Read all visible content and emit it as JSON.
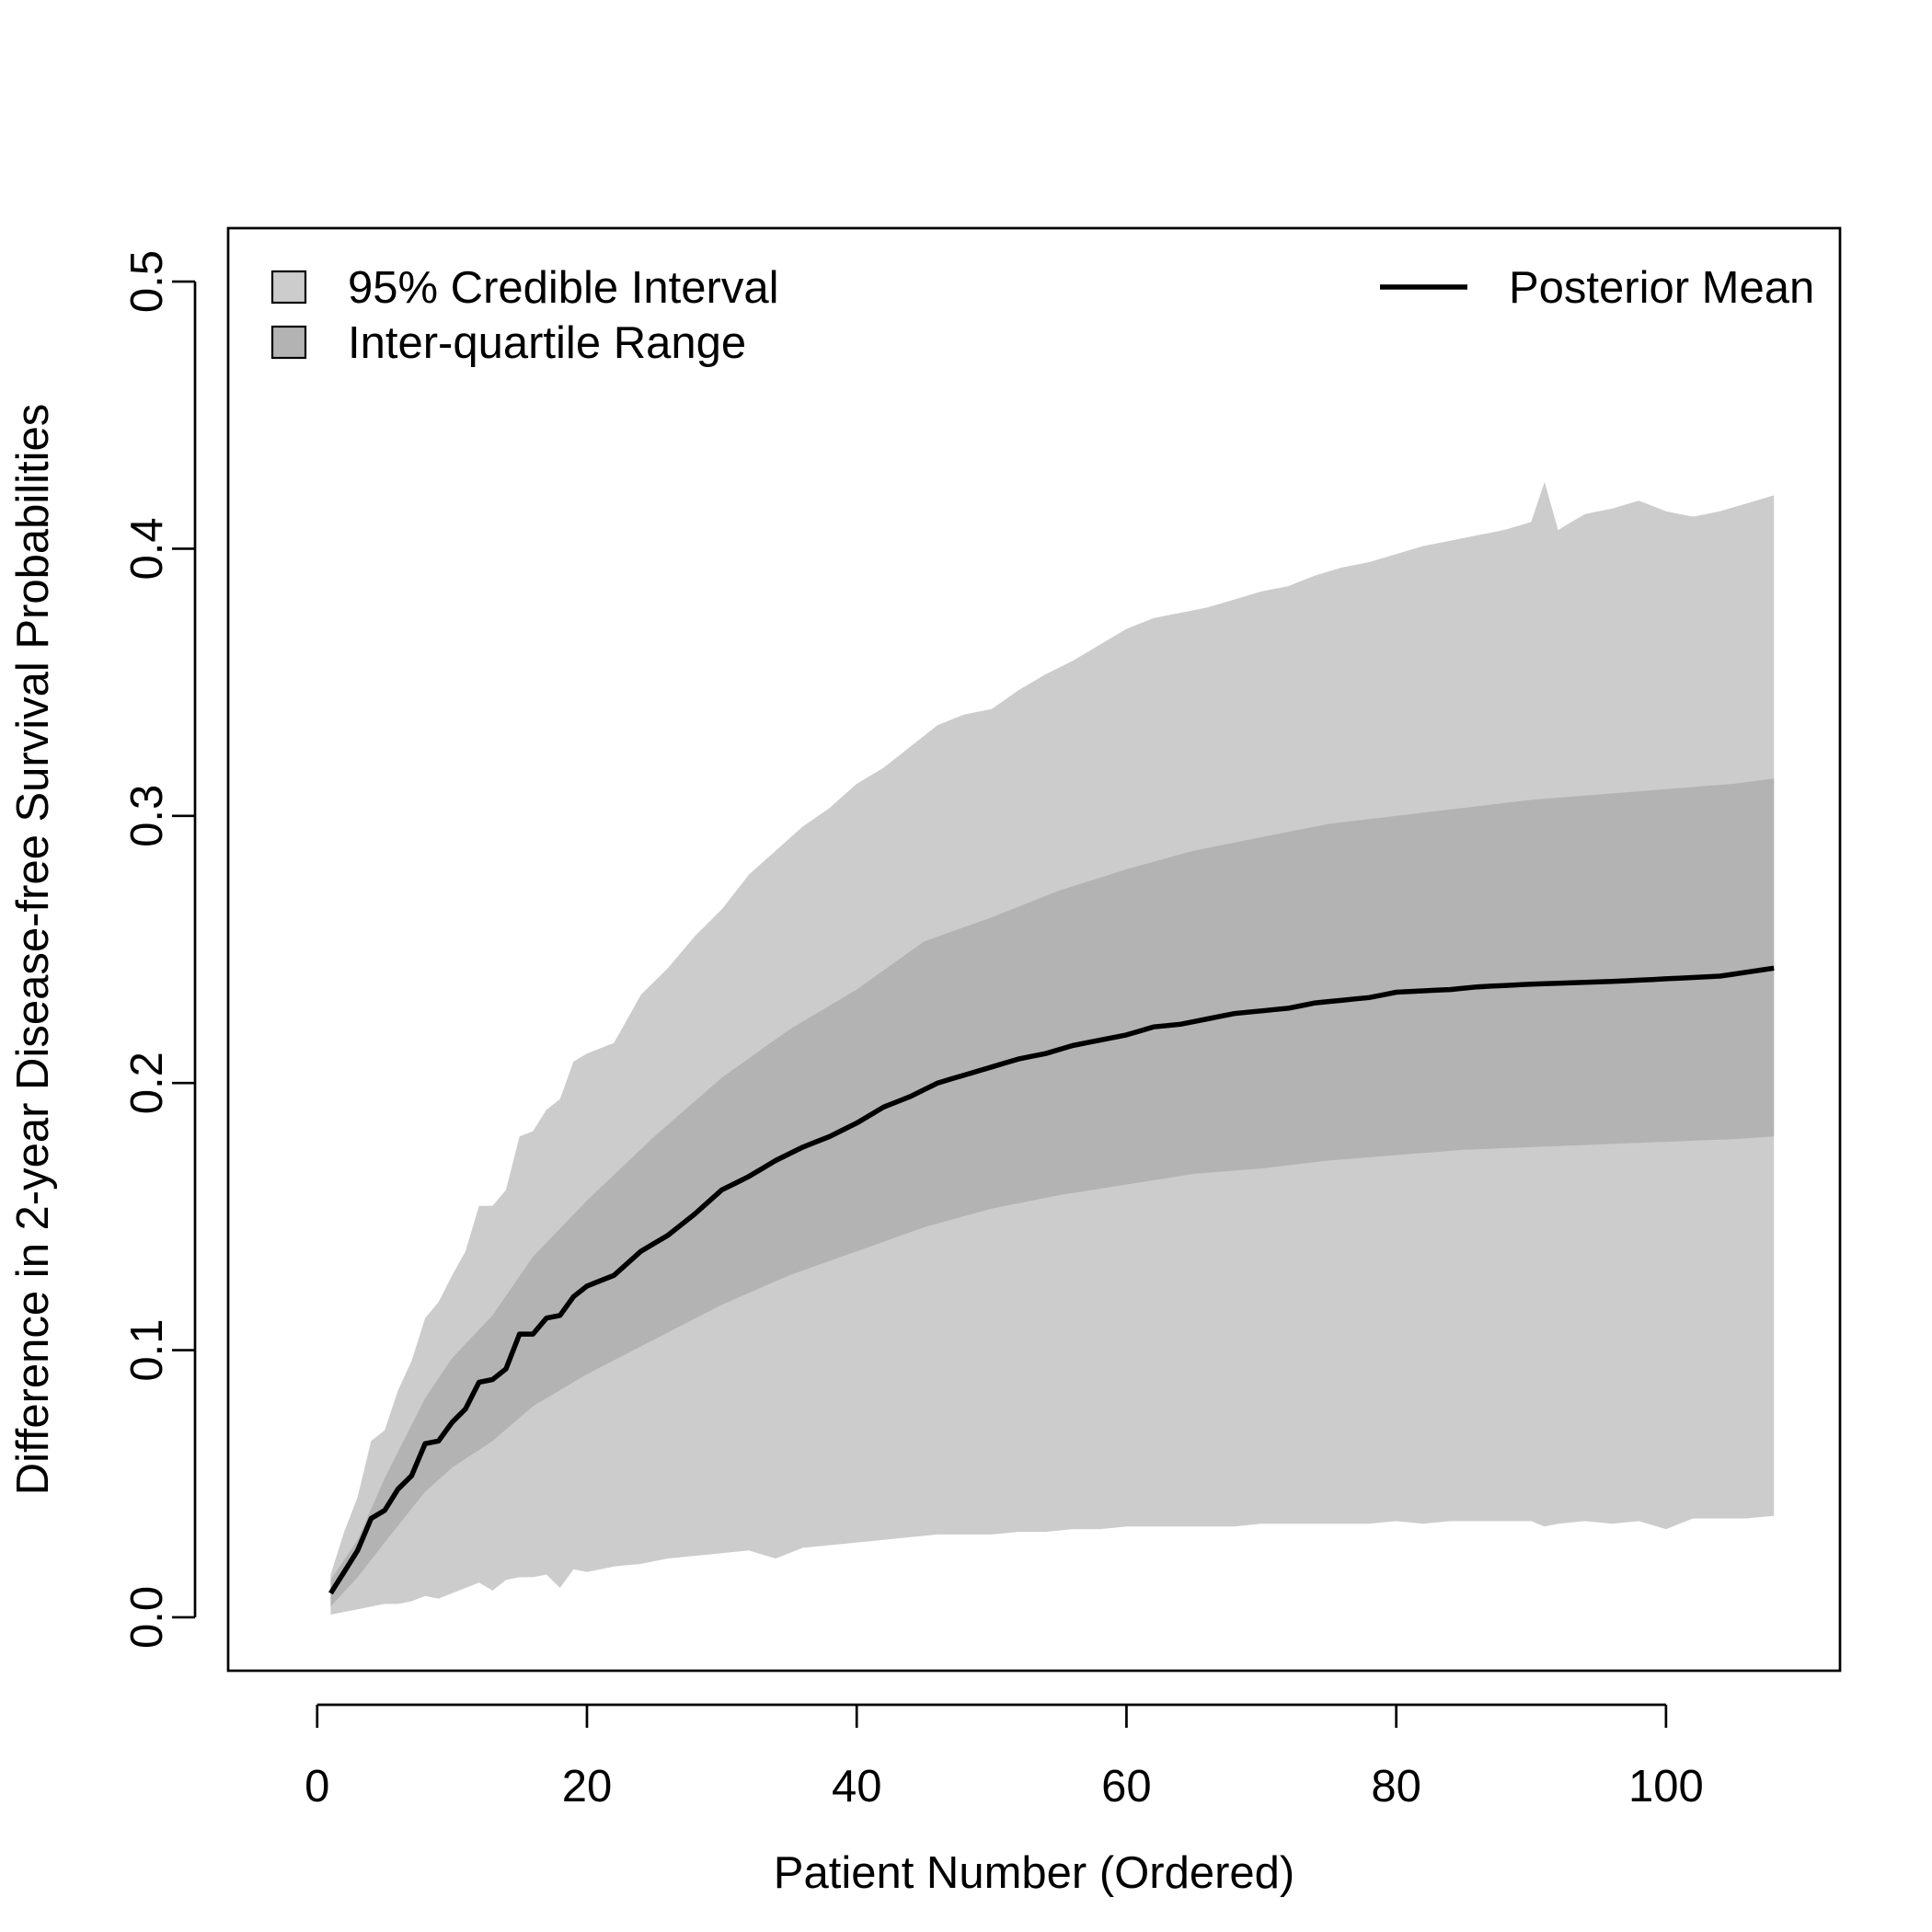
{
  "chart_data": {
    "type": "area",
    "title": "",
    "xlabel": "Patient Number (Ordered)",
    "ylabel": "Difference in 2-year Disease-free Survival Probabilities",
    "xlim": [
      -6.6,
      112.9
    ],
    "ylim": [
      -0.02,
      0.52
    ],
    "xticks": [
      0,
      20,
      40,
      60,
      80,
      100
    ],
    "xtick_labels": [
      "0",
      "20",
      "40",
      "60",
      "80",
      "100"
    ],
    "yticks": [
      0.0,
      0.1,
      0.2,
      0.3,
      0.4,
      0.5
    ],
    "ytick_labels": [
      "0.0",
      "0.1",
      "0.2",
      "0.3",
      "0.4",
      "0.5"
    ],
    "grid": false,
    "legend": {
      "placement": "top",
      "entries": [
        {
          "label": "95% Credible Interval",
          "kind": "fill",
          "color": "#cccccc"
        },
        {
          "label": "Inter-quartile Range",
          "kind": "fill",
          "color": "#b3b3b3"
        },
        {
          "label": "Posterior Mean",
          "kind": "line",
          "color": "#000000"
        }
      ]
    },
    "colors": {
      "ci95": "#cccccc",
      "iqr": "#b3b3b3",
      "mean": "#000000"
    },
    "x_range": [
      1,
      108
    ],
    "series": [
      {
        "name": "Posterior Mean",
        "anchors_x": [
          1,
          2,
          3,
          4,
          5,
          6,
          7,
          8,
          9,
          10,
          11,
          12,
          13,
          14,
          15,
          16,
          17,
          18,
          19,
          20,
          22,
          24,
          26,
          28,
          30,
          32,
          34,
          36,
          38,
          40,
          42,
          44,
          46,
          48,
          50,
          52,
          54,
          56,
          58,
          60,
          62,
          64,
          66,
          68,
          70,
          72,
          74,
          76,
          78,
          80,
          84,
          86,
          90,
          96,
          100,
          104,
          108
        ],
        "values": [
          0.009,
          0.017,
          0.025,
          0.037,
          0.04,
          0.048,
          0.053,
          0.065,
          0.066,
          0.073,
          0.078,
          0.088,
          0.089,
          0.093,
          0.106,
          0.106,
          0.112,
          0.113,
          0.12,
          0.124,
          0.128,
          0.137,
          0.143,
          0.151,
          0.16,
          0.165,
          0.171,
          0.176,
          0.18,
          0.185,
          0.191,
          0.195,
          0.2,
          0.203,
          0.206,
          0.209,
          0.211,
          0.214,
          0.216,
          0.218,
          0.221,
          0.222,
          0.224,
          0.226,
          0.227,
          0.228,
          0.23,
          0.231,
          0.232,
          0.234,
          0.235,
          0.236,
          0.237,
          0.238,
          0.239,
          0.24,
          0.243
        ]
      },
      {
        "name": "Inter-quartile Range",
        "anchors_x": [
          1,
          3,
          5,
          8,
          10,
          13,
          16,
          20,
          25,
          30,
          35,
          40,
          45,
          50,
          55,
          60,
          65,
          70,
          75,
          80,
          85,
          90,
          95,
          100,
          105,
          108
        ],
        "upper": [
          0.014,
          0.029,
          0.052,
          0.082,
          0.097,
          0.113,
          0.135,
          0.156,
          0.18,
          0.202,
          0.22,
          0.235,
          0.253,
          0.262,
          0.272,
          0.28,
          0.287,
          0.292,
          0.297,
          0.3,
          0.303,
          0.306,
          0.308,
          0.31,
          0.312,
          0.314
        ],
        "lower": [
          0.004,
          0.015,
          0.028,
          0.047,
          0.056,
          0.066,
          0.079,
          0.091,
          0.104,
          0.117,
          0.128,
          0.137,
          0.146,
          0.153,
          0.158,
          0.162,
          0.166,
          0.168,
          0.171,
          0.173,
          0.175,
          0.176,
          0.177,
          0.178,
          0.179,
          0.18
        ]
      },
      {
        "name": "95% Credible Interval",
        "anchors_x": [
          1,
          2,
          3,
          4,
          5,
          6,
          7,
          8,
          9,
          10,
          11,
          12,
          13,
          14,
          15,
          16,
          17,
          18,
          19,
          20,
          22,
          24,
          26,
          28,
          30,
          32,
          34,
          36,
          38,
          40,
          42,
          44,
          46,
          48,
          50,
          52,
          54,
          56,
          58,
          60,
          62,
          64,
          66,
          68,
          70,
          72,
          74,
          76,
          78,
          80,
          82,
          84,
          86,
          88,
          90,
          91,
          92,
          94,
          96,
          98,
          100,
          102,
          104,
          106,
          108
        ],
        "upper": [
          0.016,
          0.032,
          0.045,
          0.066,
          0.07,
          0.085,
          0.096,
          0.112,
          0.118,
          0.128,
          0.137,
          0.154,
          0.154,
          0.16,
          0.18,
          0.182,
          0.19,
          0.194,
          0.208,
          0.211,
          0.215,
          0.233,
          0.243,
          0.255,
          0.265,
          0.278,
          0.287,
          0.296,
          0.303,
          0.312,
          0.318,
          0.326,
          0.334,
          0.338,
          0.34,
          0.347,
          0.353,
          0.358,
          0.364,
          0.37,
          0.374,
          0.376,
          0.378,
          0.381,
          0.384,
          0.386,
          0.39,
          0.393,
          0.395,
          0.398,
          0.401,
          0.403,
          0.405,
          0.407,
          0.41,
          0.425,
          0.407,
          0.413,
          0.415,
          0.418,
          0.414,
          0.412,
          0.414,
          0.417,
          0.42
        ],
        "lower": [
          0.001,
          0.002,
          0.003,
          0.004,
          0.005,
          0.005,
          0.006,
          0.008,
          0.007,
          0.009,
          0.011,
          0.013,
          0.01,
          0.014,
          0.015,
          0.015,
          0.016,
          0.011,
          0.018,
          0.017,
          0.019,
          0.02,
          0.022,
          0.023,
          0.024,
          0.025,
          0.022,
          0.026,
          0.027,
          0.028,
          0.029,
          0.03,
          0.031,
          0.031,
          0.031,
          0.032,
          0.032,
          0.033,
          0.033,
          0.034,
          0.034,
          0.034,
          0.034,
          0.034,
          0.035,
          0.035,
          0.035,
          0.035,
          0.035,
          0.036,
          0.035,
          0.036,
          0.036,
          0.036,
          0.036,
          0.034,
          0.035,
          0.036,
          0.035,
          0.036,
          0.033,
          0.037,
          0.037,
          0.037,
          0.038
        ]
      }
    ]
  }
}
